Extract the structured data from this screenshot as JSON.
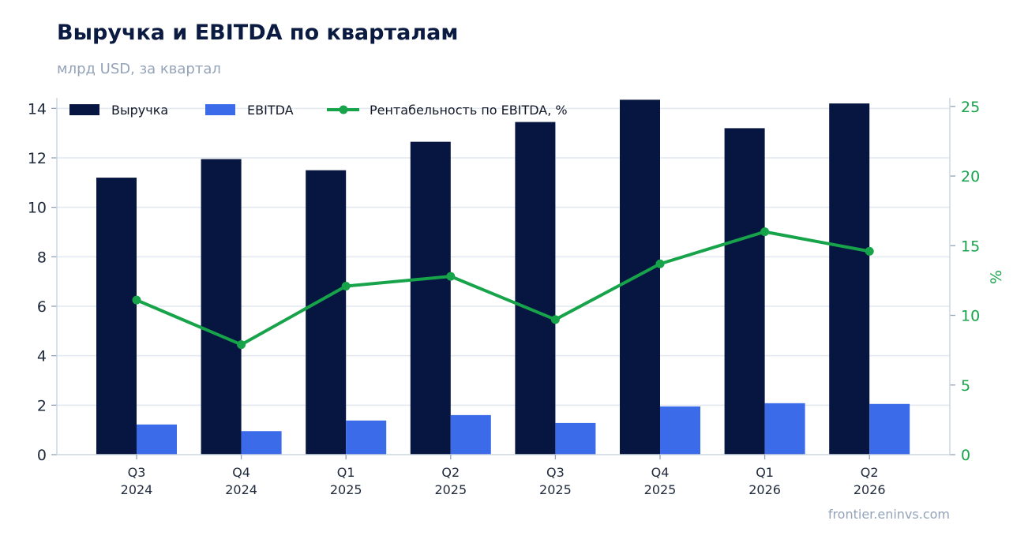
{
  "header": {
    "title": "Выручка и EBITDA по кварталам",
    "subtitle": "млрд USD, за квартал",
    "source": "frontier.eninvs.com"
  },
  "chart_data": {
    "type": "bar",
    "categories": [
      [
        "Q3",
        "2024"
      ],
      [
        "Q4",
        "2024"
      ],
      [
        "Q1",
        "2025"
      ],
      [
        "Q2",
        "2025"
      ],
      [
        "Q3",
        "2025"
      ],
      [
        "Q4",
        "2025"
      ],
      [
        "Q1",
        "2026"
      ],
      [
        "Q2",
        "2026"
      ]
    ],
    "series": [
      {
        "name": "Выручка",
        "kind": "bar",
        "axis": "left",
        "color": "#061640",
        "values": [
          11.2,
          11.95,
          11.5,
          12.65,
          13.45,
          14.35,
          13.2,
          14.2
        ]
      },
      {
        "name": "EBITDA",
        "kind": "bar",
        "axis": "left",
        "color": "#3b6be8",
        "values": [
          1.22,
          0.95,
          1.38,
          1.6,
          1.28,
          1.95,
          2.08,
          2.05
        ]
      },
      {
        "name": "Рентабельность по EBITDA, %",
        "kind": "line",
        "axis": "right",
        "color": "#16a34a",
        "values": [
          11.1,
          7.9,
          12.1,
          12.8,
          9.7,
          13.7,
          16.0,
          14.6
        ]
      }
    ],
    "y_left": {
      "min": 0,
      "max": 15,
      "ticks": [
        0,
        2,
        4,
        6,
        8,
        10,
        12,
        14
      ]
    },
    "y_right": {
      "min": 0,
      "max": 25.5,
      "ticks": [
        0,
        5,
        10,
        15,
        20,
        25
      ],
      "label": "%"
    },
    "grid": true,
    "legend_position": "top-left"
  }
}
